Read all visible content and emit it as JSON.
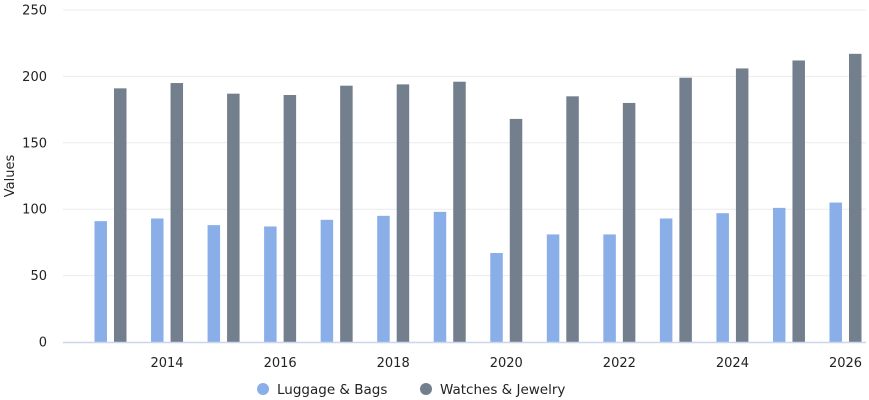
{
  "chart_data": {
    "type": "bar",
    "x": [
      2013,
      2014,
      2015,
      2016,
      2017,
      2018,
      2019,
      2020,
      2021,
      2022,
      2023,
      2024,
      2025,
      2026
    ],
    "series": [
      {
        "name": "Luggage & Bags",
        "color": "#8aaee8",
        "values": [
          91,
          93,
          88,
          87,
          92,
          95,
          98,
          67,
          81,
          81,
          93,
          97,
          101,
          105
        ]
      },
      {
        "name": "Watches & Jewelry",
        "color": "#737f8c",
        "values": [
          191,
          195,
          187,
          186,
          193,
          194,
          196,
          168,
          185,
          180,
          199,
          206,
          212,
          217
        ]
      }
    ],
    "x_tick_labels": [
      "2014",
      "2016",
      "2018",
      "2020",
      "2022",
      "2024",
      "2026"
    ],
    "ylabel": "Values",
    "ylim": [
      0,
      250
    ],
    "y_ticks": [
      0,
      50,
      100,
      150,
      200,
      250
    ],
    "grid": true,
    "legend_position": "bottom"
  }
}
